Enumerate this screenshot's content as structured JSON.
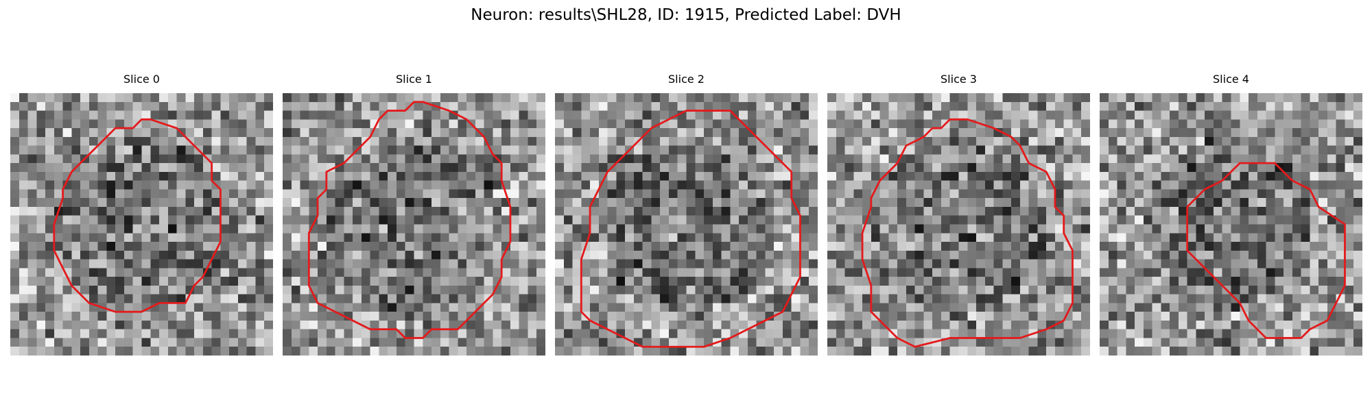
{
  "figure": {
    "title": "Neuron: results\\SHL28, ID: 1915, Predicted Label: DVH"
  },
  "panels": [
    {
      "title": "Slice 0",
      "image": "grayscale-microscopy-slice",
      "contour_color": "#e41a1c"
    },
    {
      "title": "Slice 1",
      "image": "grayscale-microscopy-slice",
      "contour_color": "#e41a1c"
    },
    {
      "title": "Slice 2",
      "image": "grayscale-microscopy-slice",
      "contour_color": "#e41a1c"
    },
    {
      "title": "Slice 3",
      "image": "grayscale-microscopy-slice",
      "contour_color": "#e41a1c"
    },
    {
      "title": "Slice 4",
      "image": "grayscale-microscopy-slice",
      "contour_color": "#e41a1c"
    }
  ]
}
